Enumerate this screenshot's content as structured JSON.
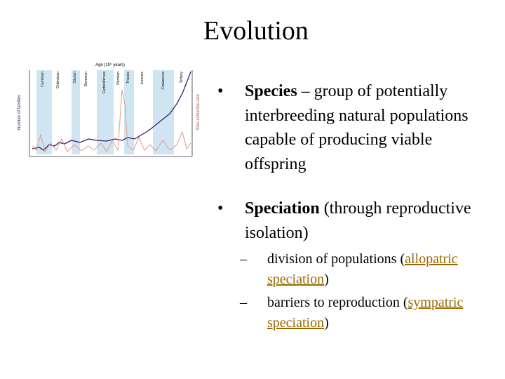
{
  "title": "Evolution",
  "figure": {
    "x_label": "Age (10⁶ years)",
    "y_label": "Number of families",
    "y2_label": "Total extinction rate",
    "periods": [
      "Cambrian",
      "Ordovician",
      "Silurian",
      "Devonian",
      "Carboniferous",
      "Permian",
      "Triassic",
      "Jurassic",
      "Cretaceous",
      "Tertiary"
    ]
  },
  "bullets": [
    {
      "term": "Species",
      "text": " – group of potentially interbreeding natural populations capable of producing viable offspring"
    },
    {
      "term": "Speciation",
      "text": " (through reproductive isolation)",
      "sub": [
        {
          "before": "division of populations (",
          "link": "allopatric speciation",
          "after": ")"
        },
        {
          "before": "barriers to reproduction (",
          "link": "sympatric speciation",
          "after": ")"
        }
      ]
    }
  ]
}
